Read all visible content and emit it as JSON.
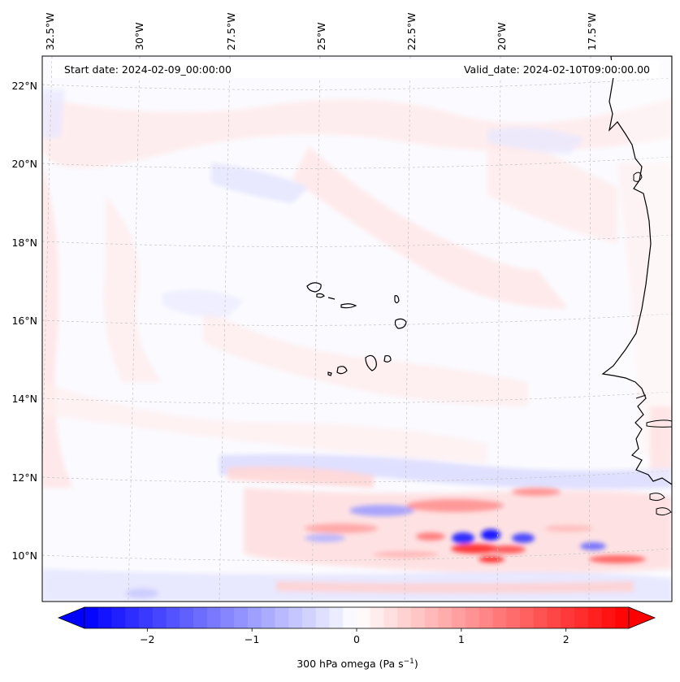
{
  "map": {
    "start_date": "Start date: 2024-02-09_00:00:00",
    "valid_date": "Valid_date: 2024-02-10T09:00:00.00",
    "lon_labels": [
      "32.5°W",
      "30°W",
      "27.5°W",
      "25°W",
      "22.5°W",
      "20°W",
      "17.5°W"
    ],
    "lat_labels": [
      "22°N",
      "20°N",
      "18°N",
      "16°N",
      "14°N",
      "12°N",
      "10°N"
    ],
    "field": "300 hPa omega",
    "colormap": "bwr",
    "colors": {
      "negative": "#0000ff",
      "zero": "#ffffff",
      "positive": "#ff0000",
      "coast": "#000000",
      "grid": "#bbbbbb"
    }
  },
  "colorbar": {
    "label_main": "300 hPa omega (Pa s",
    "label_sup": "−1",
    "label_end": ")",
    "ticks": [
      "−2",
      "−1",
      "0",
      "1",
      "2"
    ],
    "tick_values": [
      -2,
      -1,
      0,
      1,
      2
    ],
    "range": [
      -2.6,
      2.6
    ]
  }
}
